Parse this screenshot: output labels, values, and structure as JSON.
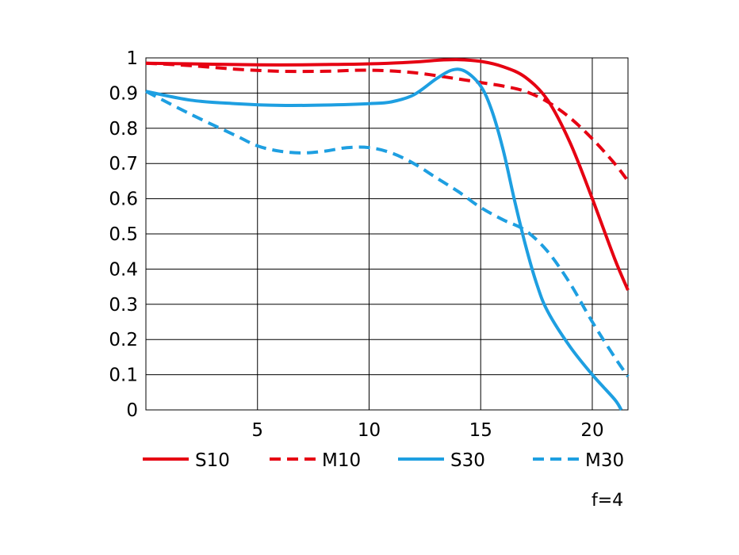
{
  "chart_data": {
    "type": "line",
    "title": "",
    "xlabel": "",
    "ylabel": "",
    "xlim": [
      0,
      21.6
    ],
    "ylim": [
      0,
      1
    ],
    "x_ticks": [
      5,
      10,
      15,
      20
    ],
    "x_tick_labels": [
      "5",
      "10",
      "15",
      "20"
    ],
    "y_ticks": [
      0,
      0.1,
      0.2,
      0.3,
      0.4,
      0.5,
      0.6,
      0.7,
      0.8,
      0.9,
      1
    ],
    "y_tick_labels": [
      "0",
      "0.1",
      "0.2",
      "0.3",
      "0.4",
      "0.5",
      "0.6",
      "0.7",
      "0.8",
      "0.9",
      "1"
    ],
    "grid": true,
    "legend_position": "bottom",
    "annotation": "f=4",
    "series": [
      {
        "name": "S10",
        "color": "#e60012",
        "dash": "solid",
        "x": [
          0,
          2,
          4,
          6,
          8,
          10,
          12,
          13,
          14,
          15,
          16,
          17,
          18,
          19,
          20,
          21,
          21.6
        ],
        "y": [
          0.985,
          0.983,
          0.981,
          0.98,
          0.981,
          0.983,
          0.988,
          0.993,
          0.995,
          0.99,
          0.975,
          0.945,
          0.88,
          0.76,
          0.6,
          0.43,
          0.34
        ]
      },
      {
        "name": "M10",
        "color": "#e60012",
        "dash": "dashed",
        "x": [
          0,
          2,
          4,
          6,
          8,
          10,
          12,
          14,
          15,
          16,
          17,
          18,
          19,
          20,
          21,
          21.6
        ],
        "y": [
          0.985,
          0.978,
          0.968,
          0.962,
          0.962,
          0.965,
          0.958,
          0.94,
          0.93,
          0.92,
          0.905,
          0.875,
          0.83,
          0.77,
          0.7,
          0.65
        ]
      },
      {
        "name": "S30",
        "color": "#1e9fe1",
        "dash": "solid",
        "x": [
          0,
          2,
          4,
          6,
          8,
          10,
          11,
          12,
          13,
          13.7,
          14.3,
          15,
          15.5,
          16,
          16.5,
          17,
          17.5,
          18,
          19,
          20,
          21,
          21.3
        ],
        "y": [
          0.905,
          0.88,
          0.87,
          0.865,
          0.866,
          0.87,
          0.875,
          0.895,
          0.94,
          0.965,
          0.962,
          0.92,
          0.85,
          0.74,
          0.6,
          0.47,
          0.36,
          0.28,
          0.18,
          0.1,
          0.03,
          0.0
        ]
      },
      {
        "name": "M30",
        "color": "#1e9fe1",
        "dash": "dashed",
        "x": [
          0,
          2,
          4,
          5,
          6,
          7,
          8,
          9,
          10,
          11,
          12,
          13,
          14,
          15,
          16,
          17,
          18,
          19,
          20,
          21,
          21.6
        ],
        "y": [
          0.905,
          0.84,
          0.78,
          0.75,
          0.735,
          0.73,
          0.735,
          0.745,
          0.745,
          0.73,
          0.7,
          0.66,
          0.62,
          0.575,
          0.54,
          0.51,
          0.45,
          0.36,
          0.25,
          0.15,
          0.095
        ]
      }
    ]
  }
}
